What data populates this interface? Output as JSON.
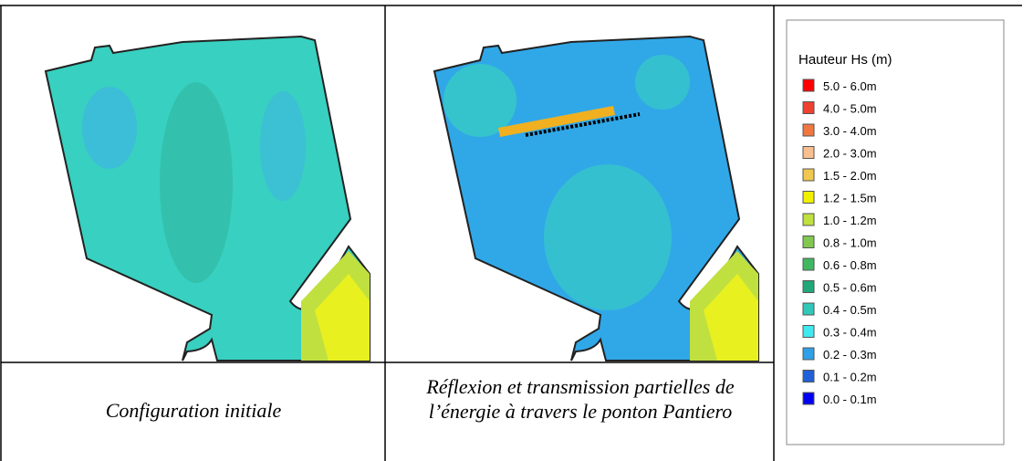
{
  "figure": {
    "captions": [
      "Configuration initiale",
      "Réflexion et transmission partielles de l’énergie à travers le ponton Pantiero"
    ],
    "legend": {
      "title": "Hauteur Hs (m)",
      "items": [
        {
          "label": "5.0 - 6.0m",
          "color": "#ff0000"
        },
        {
          "label": "4.0 - 5.0m",
          "color": "#f04030"
        },
        {
          "label": "3.0 - 4.0m",
          "color": "#f07840"
        },
        {
          "label": "2.0 - 3.0m",
          "color": "#f8c090"
        },
        {
          "label": "1.5 - 2.0m",
          "color": "#f0c850"
        },
        {
          "label": "1.2 - 1.5m",
          "color": "#f0f000"
        },
        {
          "label": "1.0 - 1.2m",
          "color": "#c0e040"
        },
        {
          "label": "0.8 - 1.0m",
          "color": "#80c850"
        },
        {
          "label": "0.6 - 0.8m",
          "color": "#40b860"
        },
        {
          "label": "0.5 - 0.6m",
          "color": "#20a878"
        },
        {
          "label": "0.4 - 0.5m",
          "color": "#30c8b8"
        },
        {
          "label": "0.3 - 0.4m",
          "color": "#40e8f0"
        },
        {
          "label": "0.2 - 0.3m",
          "color": "#30a0e8"
        },
        {
          "label": "0.1 - 0.2m",
          "color": "#2060d8"
        },
        {
          "label": "0.0 - 0.1m",
          "color": "#0000f0"
        }
      ]
    }
  }
}
